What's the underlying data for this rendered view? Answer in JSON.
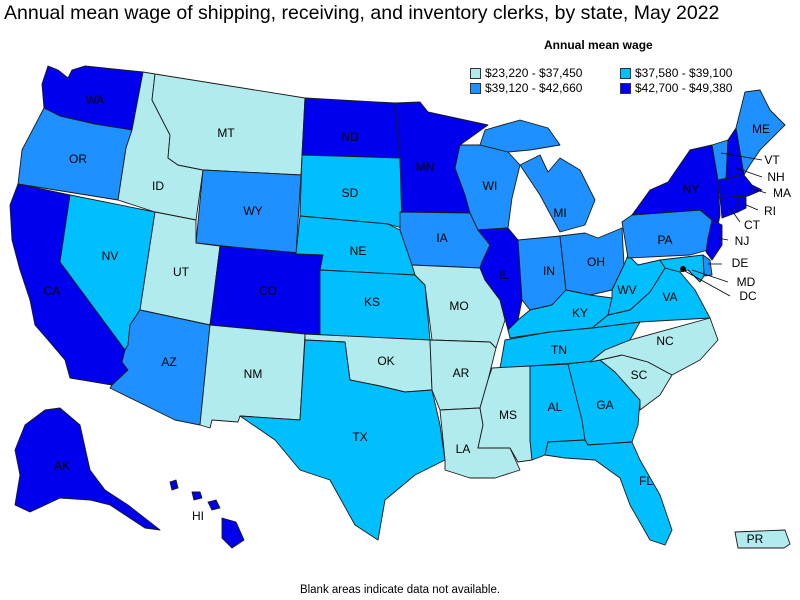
{
  "title": "Annual mean wage of shipping, receiving, and inventory clerks, by state, May 2022",
  "footnote": "Blank areas indicate data not available.",
  "legend": {
    "title": "Annual mean wage",
    "items": [
      {
        "id": "c1",
        "label": "$23,220 - $37,450",
        "color": "#b2ebee"
      },
      {
        "id": "c2",
        "label": "$37,580 - $39,100",
        "color": "#00bfff"
      },
      {
        "id": "c3",
        "label": "$39,120 - $42,660",
        "color": "#1e90ff"
      },
      {
        "id": "c4",
        "label": "$42,700 - $49,380",
        "color": "#0000ee"
      }
    ]
  },
  "states": {
    "WA": {
      "label": "WA",
      "cls": "c4"
    },
    "OR": {
      "label": "OR",
      "cls": "c3"
    },
    "CA": {
      "label": "CA",
      "cls": "c4"
    },
    "NV": {
      "label": "NV",
      "cls": "c2"
    },
    "ID": {
      "label": "ID",
      "cls": "c1"
    },
    "MT": {
      "label": "MT",
      "cls": "c1"
    },
    "WY": {
      "label": "WY",
      "cls": "c3"
    },
    "UT": {
      "label": "UT",
      "cls": "c1"
    },
    "AZ": {
      "label": "AZ",
      "cls": "c3"
    },
    "CO": {
      "label": "CO",
      "cls": "c4"
    },
    "NM": {
      "label": "NM",
      "cls": "c1"
    },
    "ND": {
      "label": "ND",
      "cls": "c4"
    },
    "SD": {
      "label": "SD",
      "cls": "c2"
    },
    "NE": {
      "label": "NE",
      "cls": "c2"
    },
    "KS": {
      "label": "KS",
      "cls": "c2"
    },
    "OK": {
      "label": "OK",
      "cls": "c1"
    },
    "TX": {
      "label": "TX",
      "cls": "c2"
    },
    "MN": {
      "label": "MN",
      "cls": "c4"
    },
    "IA": {
      "label": "IA",
      "cls": "c3"
    },
    "MO": {
      "label": "MO",
      "cls": "c1"
    },
    "AR": {
      "label": "AR",
      "cls": "c1"
    },
    "LA": {
      "label": "LA",
      "cls": "c1"
    },
    "WI": {
      "label": "WI",
      "cls": "c3"
    },
    "IL": {
      "label": "IL",
      "cls": "c4"
    },
    "MI": {
      "label": "MI",
      "cls": "c3"
    },
    "IN": {
      "label": "IN",
      "cls": "c3"
    },
    "OH": {
      "label": "OH",
      "cls": "c3"
    },
    "KY": {
      "label": "KY",
      "cls": "c2"
    },
    "TN": {
      "label": "TN",
      "cls": "c2"
    },
    "MS": {
      "label": "MS",
      "cls": "c1"
    },
    "AL": {
      "label": "AL",
      "cls": "c2"
    },
    "GA": {
      "label": "GA",
      "cls": "c2"
    },
    "FL": {
      "label": "FL",
      "cls": "c2"
    },
    "SC": {
      "label": "SC",
      "cls": "c1"
    },
    "NC": {
      "label": "NC",
      "cls": "c1"
    },
    "VA": {
      "label": "VA",
      "cls": "c2"
    },
    "WV": {
      "label": "WV",
      "cls": "c2"
    },
    "PA": {
      "label": "PA",
      "cls": "c3"
    },
    "NY": {
      "label": "NY",
      "cls": "c4"
    },
    "ME": {
      "label": "ME",
      "cls": "c3"
    },
    "VT": {
      "label": "VT",
      "cls": "c3"
    },
    "NH": {
      "label": "NH",
      "cls": "c4"
    },
    "MA": {
      "label": "MA",
      "cls": "c4"
    },
    "RI": {
      "label": "RI",
      "cls": "c4"
    },
    "CT": {
      "label": "CT",
      "cls": "c4"
    },
    "NJ": {
      "label": "NJ",
      "cls": "c4"
    },
    "DE": {
      "label": "DE",
      "cls": "c3"
    },
    "MD": {
      "label": "MD",
      "cls": "c2"
    },
    "DC": {
      "label": "DC",
      "cls": "c4"
    },
    "AK": {
      "label": "AK",
      "cls": "c4"
    },
    "HI": {
      "label": "HI",
      "cls": "c4"
    },
    "PR": {
      "label": "PR",
      "cls": "c1"
    }
  }
}
